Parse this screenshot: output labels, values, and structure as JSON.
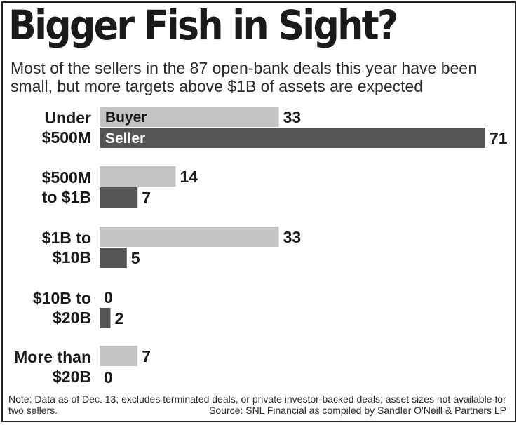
{
  "chart_data": {
    "type": "bar",
    "orientation": "horizontal",
    "title": "Bigger Fish in Sight?",
    "subtitle": "Most of the sellers in the 87 open-bank deals this year have been small, but more targets above $1B of assets are expected",
    "categories": [
      [
        "Under",
        "$500M"
      ],
      [
        "$500M",
        "to $1B"
      ],
      [
        "$1B to",
        "$10B"
      ],
      [
        "$10B to",
        "$20B"
      ],
      [
        "More than",
        "$20B"
      ]
    ],
    "series": [
      {
        "name": "Buyer",
        "values": [
          33,
          14,
          33,
          0,
          7
        ],
        "color": "#c4c4c4"
      },
      {
        "name": "Seller",
        "values": [
          71,
          7,
          5,
          2,
          0
        ],
        "color": "#555555"
      }
    ],
    "xlim": [
      0,
      71
    ],
    "grid": false,
    "legend": "inside-first-bars"
  },
  "note": "Note: Data as of Dec. 13; excludes terminated deals, or private investor-backed deals; asset sizes not available for two sellers.",
  "source": "Source: SNL Financial as compiled by Sandler O'Neill & Partners LP"
}
